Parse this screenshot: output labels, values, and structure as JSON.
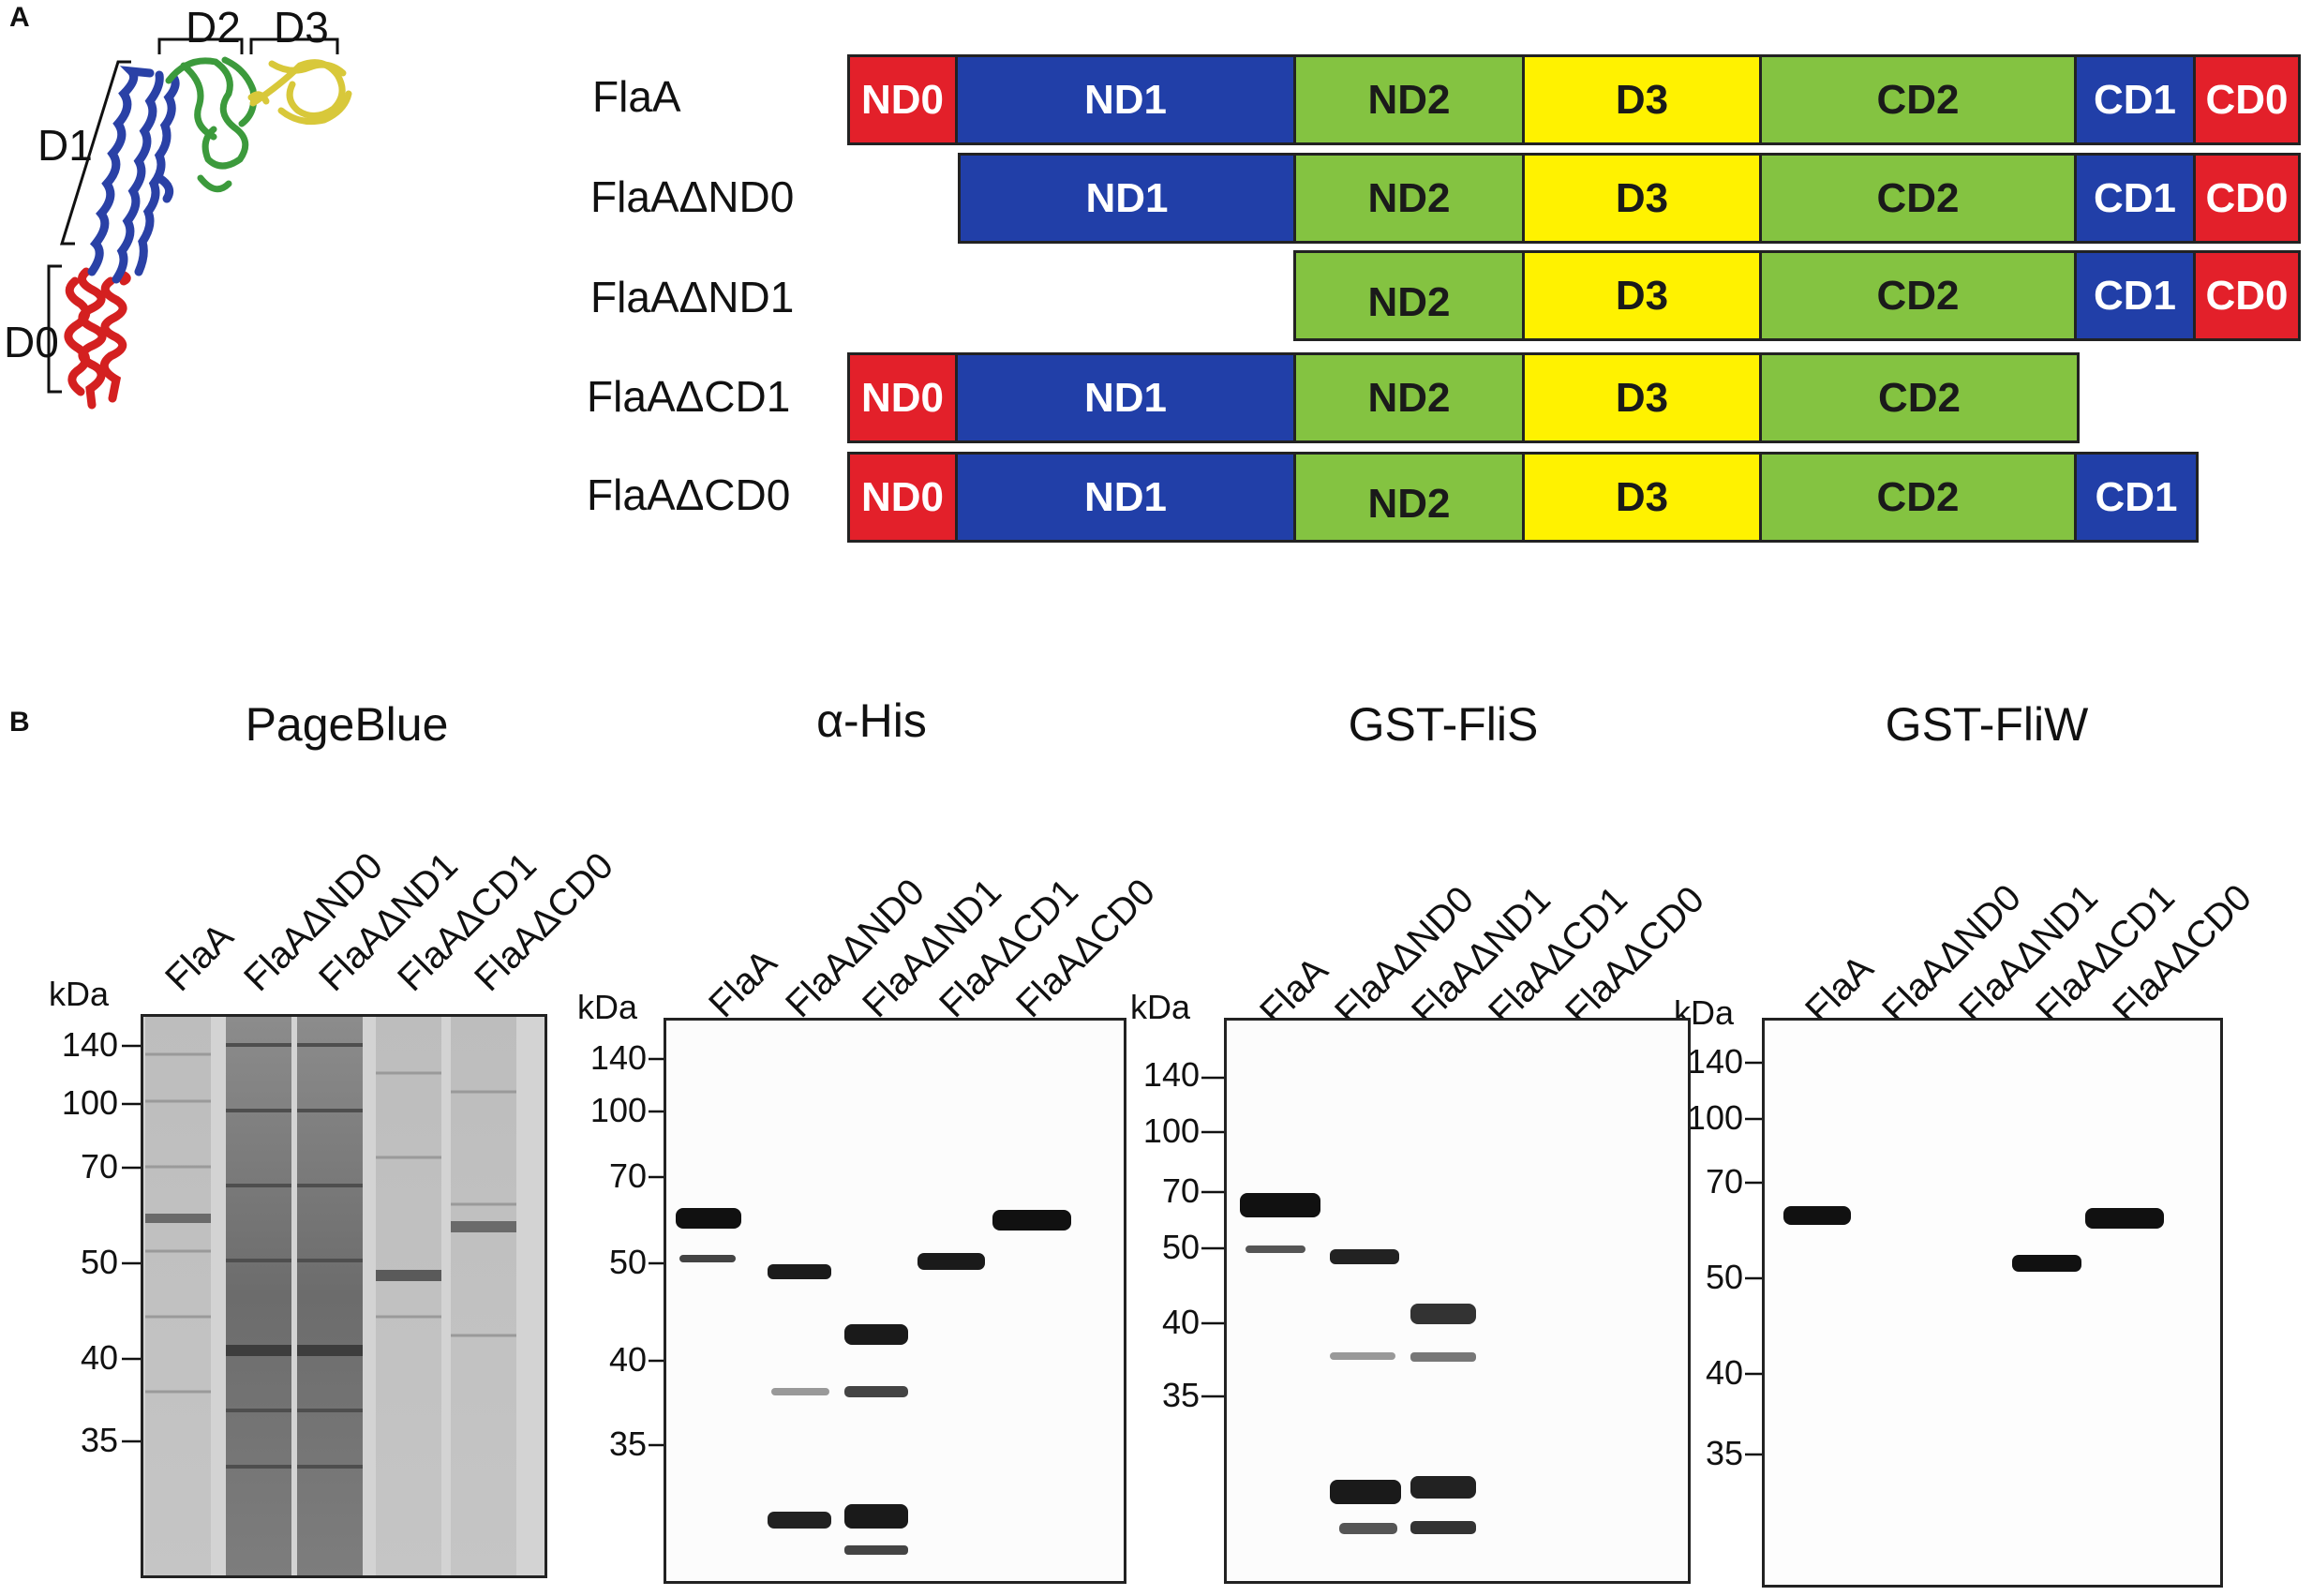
{
  "panel_a": {
    "letter": "A",
    "structure_labels": {
      "d0": "D0",
      "d1": "D1",
      "d2": "D2",
      "d3": "D3"
    },
    "constructs": [
      {
        "name": "FlaA",
        "domains": [
          "ND0",
          "ND1",
          "ND2",
          "D3",
          "CD2",
          "CD1",
          "CD0"
        ]
      },
      {
        "name": "FlaAΔND0",
        "domains": [
          "ND1",
          "ND2",
          "D3",
          "CD2",
          "CD1",
          "CD0"
        ]
      },
      {
        "name": "FlaAΔND1",
        "domains": [
          "ND2",
          "D3",
          "CD2",
          "CD1",
          "CD0"
        ]
      },
      {
        "name": "FlaAΔCD1",
        "domains": [
          "ND0",
          "ND1",
          "ND2",
          "D3",
          "CD2"
        ]
      },
      {
        "name": "FlaAΔCD0",
        "domains": [
          "ND0",
          "ND1",
          "ND2",
          "D3",
          "CD2",
          "CD1"
        ]
      }
    ],
    "domain_colors": {
      "ND0": "#e3202a",
      "ND1": "#213fa8",
      "ND2": "#84c341",
      "D3": "#fff200",
      "CD2": "#84c341",
      "CD1": "#213fa8",
      "CD0": "#e3202a"
    }
  },
  "panel_b": {
    "letter": "B",
    "kda_label": "kDa",
    "lanes": [
      "FlaA",
      "FlaAΔND0",
      "FlaAΔND1",
      "FlaAΔCD1",
      "FlaAΔCD0"
    ],
    "gels": [
      {
        "title": "PageBlue",
        "markers": [
          "140",
          "100",
          "70",
          "50",
          "40",
          "35"
        ]
      },
      {
        "title": "α-His",
        "markers": [
          "140",
          "100",
          "70",
          "50",
          "40",
          "35"
        ]
      },
      {
        "title": "GST-FliS",
        "markers": [
          "140",
          "100",
          "70",
          "50",
          "40",
          "35"
        ]
      },
      {
        "title": "GST-FliW",
        "markers": [
          "140",
          "100",
          "70",
          "50",
          "40",
          "35"
        ]
      }
    ]
  }
}
